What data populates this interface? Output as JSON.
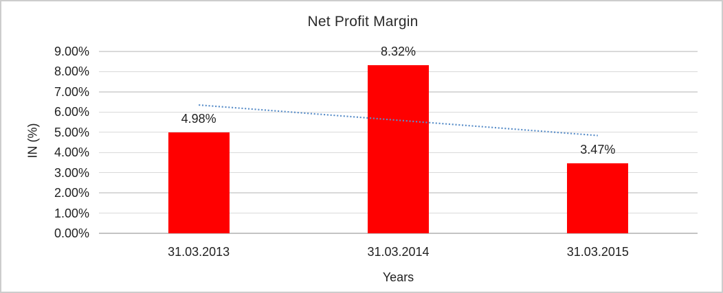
{
  "chart_data": {
    "type": "bar",
    "title": "Net Profit Margin",
    "xlabel": "Years",
    "ylabel": "IN (%)",
    "categories": [
      "31.03.2013",
      "31.03.2014",
      "31.03.2015"
    ],
    "values": [
      4.98,
      8.32,
      3.47
    ],
    "data_labels": [
      "4.98%",
      "8.32%",
      "3.47%"
    ],
    "ylim": [
      0,
      9
    ],
    "ytick_step": 1,
    "ytick_labels": [
      "0.00%",
      "1.00%",
      "2.00%",
      "3.00%",
      "4.00%",
      "5.00%",
      "6.00%",
      "7.00%",
      "8.00%",
      "9.00%"
    ],
    "grid": "horizontal",
    "legend": "none",
    "colors": {
      "bar": "#ff0000",
      "trendline": "#5b8fc9",
      "gridline": "#d9d9d9",
      "axis_line": "#c3c3c3",
      "text": "#1f1f1f",
      "frame_border": "#cdcdcd",
      "background": "#ffffff"
    },
    "trendline": {
      "kind": "linear",
      "style": "dotted",
      "start_value": 6.35,
      "end_value": 4.84
    }
  }
}
